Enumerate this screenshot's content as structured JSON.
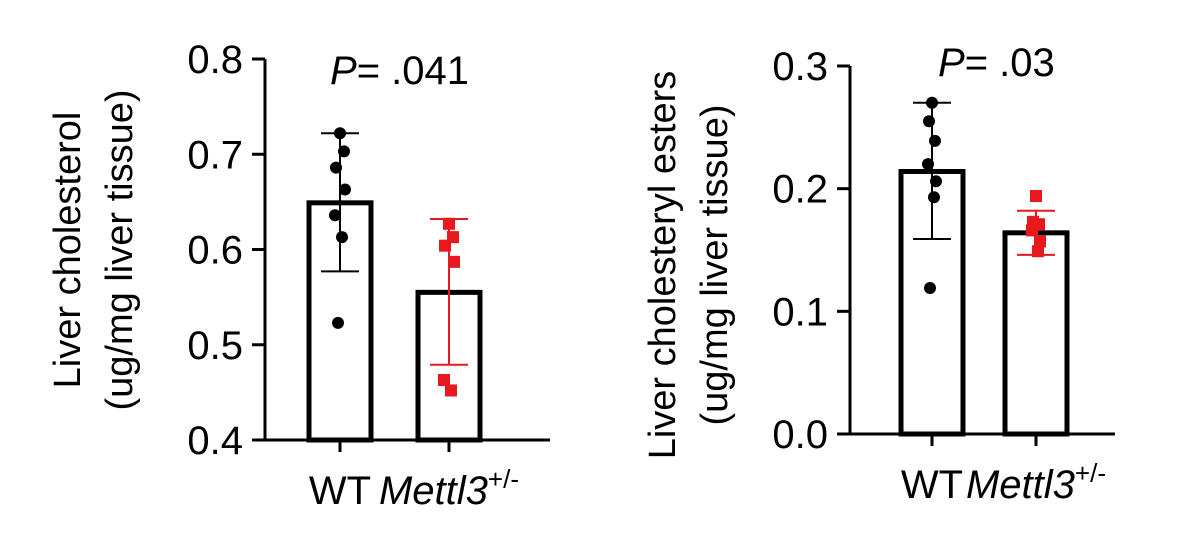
{
  "chart_data": [
    {
      "type": "bar",
      "ylabel": [
        "Liver cholesterol",
        "(ug/mg liver tissue)"
      ],
      "ylim": [
        0.4,
        0.8
      ],
      "yticks": [
        "0.4",
        "0.5",
        "0.6",
        "0.7",
        "0.8"
      ],
      "ytick_values": [
        0.4,
        0.5,
        0.6,
        0.7,
        0.8
      ],
      "categories": [
        {
          "label": "WT",
          "italic": false,
          "sup": ""
        },
        {
          "label": "Mettl3",
          "italic": true,
          "sup": "+/-"
        }
      ],
      "p_label": {
        "p": "P",
        "rest": "= .041"
      },
      "series": [
        {
          "mean": 0.649,
          "sd_low": 0.577,
          "sd_high": 0.722,
          "color": "#000000",
          "marker": "circle",
          "points": [
            0.722,
            0.703,
            0.686,
            0.663,
            0.636,
            0.613,
            0.523
          ]
        },
        {
          "mean": 0.555,
          "sd_low": 0.479,
          "sd_high": 0.632,
          "color": "#e8191c",
          "marker": "square",
          "points": [
            0.627,
            0.613,
            0.604,
            0.587,
            0.463,
            0.452
          ]
        }
      ]
    },
    {
      "type": "bar",
      "ylabel": [
        "Liver cholesteryl esters",
        "(ug/mg liver tissue)"
      ],
      "ylim": [
        0.0,
        0.3
      ],
      "yticks": [
        "0.0",
        "0.1",
        "0.2",
        "0.3"
      ],
      "ytick_values": [
        0.0,
        0.1,
        0.2,
        0.3
      ],
      "categories": [
        {
          "label": "WT",
          "italic": false,
          "sup": ""
        },
        {
          "label": "Mettl3",
          "italic": true,
          "sup": "+/-"
        }
      ],
      "p_label": {
        "p": "P",
        "rest": "= .03"
      },
      "series": [
        {
          "mean": 0.214,
          "sd_low": 0.159,
          "sd_high": 0.27,
          "color": "#000000",
          "marker": "circle",
          "points": [
            0.27,
            0.255,
            0.239,
            0.22,
            0.206,
            0.193,
            0.119
          ]
        },
        {
          "mean": 0.164,
          "sd_low": 0.146,
          "sd_high": 0.182,
          "color": "#e8191c",
          "marker": "square",
          "points": [
            0.194,
            0.173,
            0.171,
            0.166,
            0.157,
            0.149
          ]
        }
      ]
    }
  ]
}
